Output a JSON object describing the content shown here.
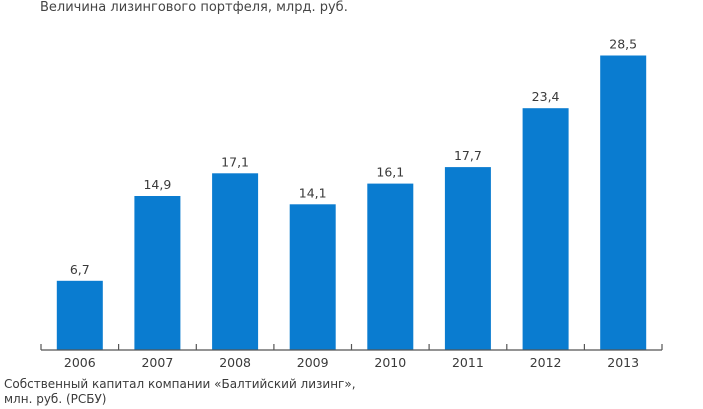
{
  "chart_data": {
    "type": "bar",
    "title": "Величина лизингового портфеля, млрд. руб.",
    "categories": [
      "2006",
      "2007",
      "2008",
      "2009",
      "2010",
      "2011",
      "2012",
      "2013"
    ],
    "values": [
      6.7,
      14.9,
      17.1,
      14.1,
      16.1,
      17.7,
      23.4,
      28.5
    ],
    "value_labels": [
      "6,7",
      "14,9",
      "17,1",
      "14,1",
      "16,1",
      "17,7",
      "23,4",
      "28,5"
    ],
    "xlabel": "",
    "ylabel": "",
    "ylim": [
      0,
      30
    ],
    "grid": false,
    "bar_color": "#0a7cd0",
    "axis_color": "#555555"
  },
  "footnote": {
    "line1": "Собственный капитал компании «Балтийский лизинг»,",
    "line2": "млн. руб. (РСБУ)"
  }
}
